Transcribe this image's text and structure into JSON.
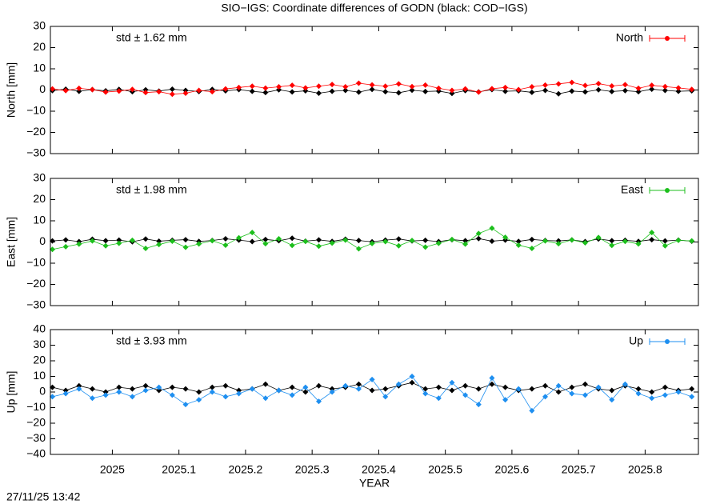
{
  "title": "SIO−IGS: Coordinate differences of GODN (black: COD−IGS)",
  "timestamp": "27/11/25 13:42",
  "chart_data": [
    {
      "type": "line",
      "ylabel": "North [mm]",
      "annotation": "std ± 1.62 mm",
      "legend": "top-right",
      "xlim": [
        2024.907,
        2025.88
      ],
      "ylim": [
        -30,
        30
      ],
      "yticks": [
        {
          "value": -30,
          "label": "−30"
        },
        {
          "value": -20,
          "label": "−20"
        },
        {
          "value": -10,
          "label": "−10"
        },
        0,
        10,
        20,
        30
      ],
      "x": [
        2024.91,
        2024.93,
        2024.95,
        2024.97,
        2024.99,
        2025.01,
        2025.03,
        2025.05,
        2025.07,
        2025.09,
        2025.11,
        2025.13,
        2025.15,
        2025.17,
        2025.19,
        2025.21,
        2025.23,
        2025.25,
        2025.27,
        2025.29,
        2025.31,
        2025.33,
        2025.35,
        2025.37,
        2025.39,
        2025.41,
        2025.43,
        2025.45,
        2025.47,
        2025.49,
        2025.51,
        2025.53,
        2025.55,
        2025.57,
        2025.59,
        2025.61,
        2025.63,
        2025.65,
        2025.67,
        2025.69,
        2025.71,
        2025.73,
        2025.75,
        2025.77,
        2025.79,
        2025.81,
        2025.83,
        2025.85,
        2025.87
      ],
      "series": [
        {
          "name": "North",
          "color": "#ff0000",
          "values": [
            0.5,
            -0.3,
            0.8,
            0.2,
            -1.0,
            -0.5,
            0.3,
            -1.2,
            -0.8,
            -2.0,
            -1.5,
            -0.2,
            -0.8,
            0.5,
            1.2,
            1.8,
            0.9,
            1.5,
            2.2,
            1.0,
            1.8,
            2.6,
            1.5,
            3.2,
            2.4,
            1.8,
            2.9,
            1.6,
            2.3,
            0.8,
            -0.2,
            0.5,
            -1.0,
            0.6,
            1.2,
            0.2,
            1.5,
            2.3,
            2.9,
            3.6,
            2.1,
            3.0,
            1.9,
            2.5,
            0.8,
            2.2,
            1.6,
            1.0,
            0.3
          ]
        },
        {
          "color": "#000000",
          "values": [
            -0.3,
            0.4,
            -0.6,
            0.2,
            -0.4,
            0.3,
            -0.8,
            0.1,
            -0.5,
            0.4,
            -0.2,
            -0.7,
            0.3,
            -0.4,
            0.2,
            -0.6,
            -1.2,
            0.1,
            -0.9,
            -0.4,
            -1.5,
            -0.6,
            -0.2,
            -1.0,
            0.3,
            -0.8,
            -1.3,
            -0.1,
            -0.7,
            -0.5,
            -1.6,
            -0.3,
            -0.9,
            0.2,
            -0.6,
            -0.4,
            -1.1,
            -0.2,
            -1.8,
            -0.5,
            -0.9,
            0.1,
            -0.7,
            -0.3,
            -0.8,
            0.4,
            -0.2,
            -0.6,
            -0.4
          ]
        }
      ]
    },
    {
      "type": "line",
      "ylabel": "East [mm]",
      "annotation": "std ± 1.98 mm",
      "legend": "top-right",
      "xlim": [
        2024.907,
        2025.88
      ],
      "ylim": [
        -30,
        30
      ],
      "yticks": [
        {
          "value": -30,
          "label": "−30"
        },
        {
          "value": -20,
          "label": "−20"
        },
        {
          "value": -10,
          "label": "−10"
        },
        0,
        10,
        20,
        30
      ],
      "x": [
        2024.91,
        2024.93,
        2024.95,
        2024.97,
        2024.99,
        2025.01,
        2025.03,
        2025.05,
        2025.07,
        2025.09,
        2025.11,
        2025.13,
        2025.15,
        2025.17,
        2025.19,
        2025.21,
        2025.23,
        2025.25,
        2025.27,
        2025.29,
        2025.31,
        2025.33,
        2025.35,
        2025.37,
        2025.39,
        2025.41,
        2025.43,
        2025.45,
        2025.47,
        2025.49,
        2025.51,
        2025.53,
        2025.55,
        2025.57,
        2025.59,
        2025.61,
        2025.63,
        2025.65,
        2025.67,
        2025.69,
        2025.71,
        2025.73,
        2025.75,
        2025.77,
        2025.79,
        2025.81,
        2025.83,
        2025.85,
        2025.87
      ],
      "series": [
        {
          "name": "East",
          "color": "#1cbf1c",
          "values": [
            -3.5,
            -2.2,
            -1.0,
            0.5,
            -1.8,
            -0.6,
            0.8,
            -3.0,
            -1.2,
            0.4,
            -2.5,
            -0.9,
            0.6,
            -1.5,
            2.0,
            4.5,
            -0.8,
            1.5,
            -1.6,
            0.3,
            -2.0,
            -0.5,
            0.9,
            -3.2,
            -0.7,
            0.2,
            -1.8,
            0.7,
            -2.4,
            -0.6,
            1.2,
            -1.0,
            4.0,
            6.5,
            2.2,
            -1.5,
            -3.0,
            0.5,
            -0.8,
            1.0,
            -0.4,
            2.1,
            -1.6,
            0.3,
            -0.9,
            4.5,
            -1.8,
            0.8,
            0.5
          ]
        },
        {
          "color": "#000000",
          "values": [
            0.5,
            1.0,
            0.2,
            1.3,
            0.6,
            0.9,
            0.1,
            1.4,
            0.4,
            0.8,
            1.1,
            0.3,
            0.7,
            1.5,
            0.9,
            0.2,
            1.2,
            0.6,
            1.8,
            0.4,
            1.0,
            0.3,
            1.3,
            0.7,
            0.1,
            0.9,
            1.4,
            0.5,
            0.8,
            0.2,
            1.1,
            0.6,
            1.6,
            0.4,
            0.9,
            0.3,
            1.2,
            0.7,
            0.5,
            1.0,
            0.2,
            1.4,
            0.6,
            0.8,
            0.3,
            1.1,
            0.5,
            0.9,
            0.4
          ]
        }
      ]
    },
    {
      "type": "line",
      "ylabel": "Up [mm]",
      "xlabel": "YEAR",
      "annotation": "std ± 3.93 mm",
      "legend": "top-right",
      "xlim": [
        2024.907,
        2025.88
      ],
      "ylim": [
        -40,
        40
      ],
      "xticks": [
        2025,
        2025.1,
        2025.2,
        2025.3,
        2025.4,
        2025.5,
        2025.6,
        2025.7,
        2025.8
      ],
      "yticks": [
        {
          "value": -40,
          "label": "−40"
        },
        {
          "value": -30,
          "label": "−30"
        },
        {
          "value": -20,
          "label": "−20"
        },
        {
          "value": -10,
          "label": "−10"
        },
        0,
        10,
        20,
        30,
        40
      ],
      "x": [
        2024.91,
        2024.93,
        2024.95,
        2024.97,
        2024.99,
        2025.01,
        2025.03,
        2025.05,
        2025.07,
        2025.09,
        2025.11,
        2025.13,
        2025.15,
        2025.17,
        2025.19,
        2025.21,
        2025.23,
        2025.25,
        2025.27,
        2025.29,
        2025.31,
        2025.33,
        2025.35,
        2025.37,
        2025.39,
        2025.41,
        2025.43,
        2025.45,
        2025.47,
        2025.49,
        2025.51,
        2025.53,
        2025.55,
        2025.57,
        2025.59,
        2025.61,
        2025.63,
        2025.65,
        2025.67,
        2025.69,
        2025.71,
        2025.73,
        2025.75,
        2025.77,
        2025.79,
        2025.81,
        2025.83,
        2025.85,
        2025.87
      ],
      "series": [
        {
          "name": "Up",
          "color": "#1e8ff0",
          "values": [
            -3,
            -1,
            2,
            -4,
            -2,
            0,
            -3,
            1,
            3,
            -2,
            -8,
            -5,
            0,
            -3,
            -1,
            2,
            -4,
            1,
            -2,
            3,
            -6,
            0,
            4,
            2,
            8,
            -3,
            5,
            10,
            -1,
            -4,
            6,
            -2,
            -8,
            9,
            -5,
            2,
            -12,
            -3,
            4,
            -1,
            -2,
            3,
            -5,
            5,
            -1,
            -4,
            -2,
            0,
            -3
          ]
        },
        {
          "color": "#000000",
          "values": [
            3,
            1,
            4,
            2,
            0,
            3,
            2,
            4,
            1,
            3,
            2,
            0,
            3,
            4,
            1,
            2,
            5,
            1,
            3,
            0,
            4,
            2,
            3,
            5,
            1,
            2,
            4,
            6,
            2,
            3,
            1,
            4,
            2,
            5,
            3,
            1,
            2,
            4,
            0,
            3,
            5,
            2,
            1,
            4,
            2,
            0,
            3,
            1,
            2
          ]
        }
      ]
    }
  ]
}
